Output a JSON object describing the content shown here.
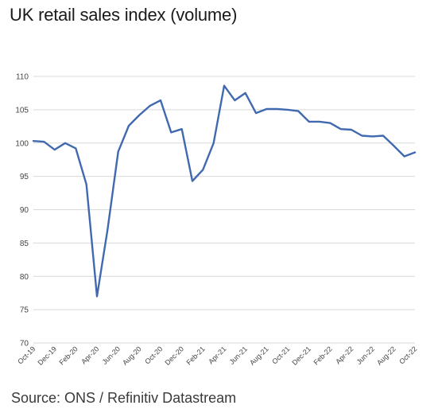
{
  "title": "UK retail sales index (volume)",
  "source": "Source: ONS / Refinitiv Datastream",
  "chart_data": {
    "type": "line",
    "title": "UK retail sales index (volume)",
    "xlabel": "",
    "ylabel": "",
    "ylim": [
      70,
      110
    ],
    "y_ticks": [
      70,
      75,
      80,
      85,
      90,
      95,
      100,
      105,
      110
    ],
    "grid": "horizontal",
    "line_color": "#4169b0",
    "x_tick_labels": [
      "Oct-19",
      "Dec-19",
      "Feb-20",
      "Apr-20",
      "Jun-20",
      "Aug-20",
      "Oct-20",
      "Dec-20",
      "Feb-21",
      "Apr-21",
      "Jun-21",
      "Aug-21",
      "Oct-21",
      "Dec-21",
      "Feb-22",
      "Apr-22",
      "Jun-22",
      "Aug-22",
      "Oct-22"
    ],
    "x": [
      "Oct-19",
      "Nov-19",
      "Dec-19",
      "Jan-20",
      "Feb-20",
      "Mar-20",
      "Apr-20",
      "May-20",
      "Jun-20",
      "Jul-20",
      "Aug-20",
      "Sep-20",
      "Oct-20",
      "Nov-20",
      "Dec-20",
      "Jan-21",
      "Feb-21",
      "Mar-21",
      "Apr-21",
      "May-21",
      "Jun-21",
      "Jul-21",
      "Aug-21",
      "Sep-21",
      "Oct-21",
      "Nov-21",
      "Dec-21",
      "Jan-22",
      "Feb-22",
      "Mar-22",
      "Apr-22",
      "May-22",
      "Jun-22",
      "Jul-22",
      "Aug-22",
      "Sep-22",
      "Oct-22"
    ],
    "series": [
      {
        "values": [
          100.3,
          100.2,
          99.0,
          100.0,
          99.2,
          93.8,
          77.0,
          87.0,
          98.7,
          102.6,
          104.2,
          105.6,
          106.4,
          101.6,
          102.1,
          94.3,
          96.0,
          100.0,
          108.6,
          106.4,
          107.5,
          104.5,
          105.1,
          105.1,
          105.0,
          104.8,
          103.2,
          103.2,
          103.0,
          102.1,
          102.0,
          101.1,
          101.0,
          101.1,
          99.6,
          98.0,
          98.6
        ]
      }
    ]
  }
}
